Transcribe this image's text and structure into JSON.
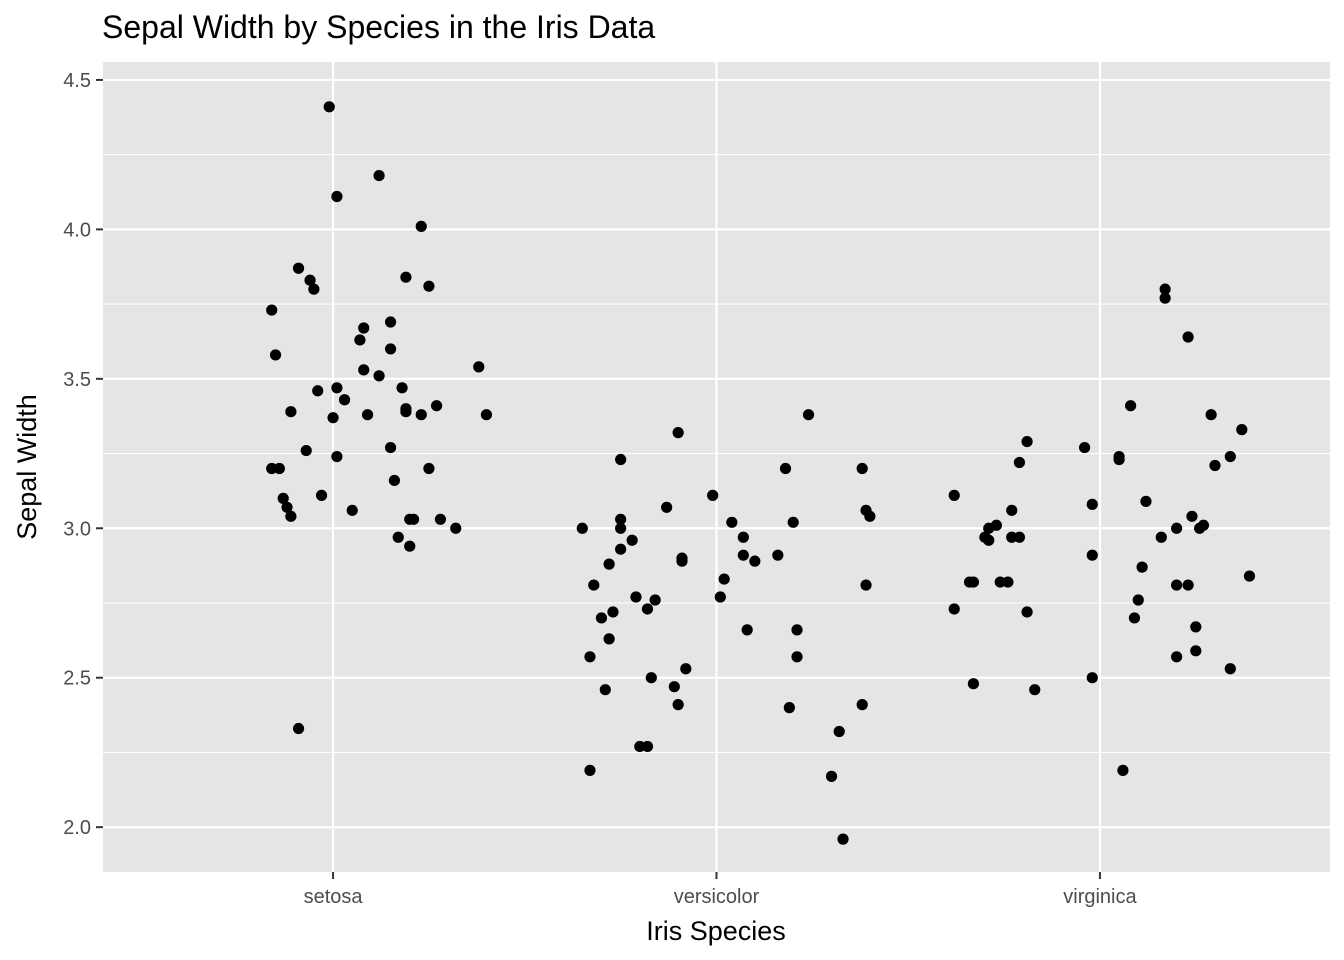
{
  "chart_data": {
    "type": "scatter",
    "title": "Sepal Width by Species in the Iris Data",
    "xlabel": "Iris Species",
    "ylabel": "Sepal Width",
    "categories": [
      "setosa",
      "versicolor",
      "virginica"
    ],
    "y_ticks": [
      2.0,
      2.5,
      3.0,
      3.5,
      4.0,
      4.5
    ],
    "y_tick_labels": [
      "2.0",
      "2.5",
      "3.0",
      "3.5",
      "4.0",
      "4.5"
    ],
    "ylim": [
      1.85,
      4.56
    ],
    "xlim": [
      0.4,
      3.6
    ],
    "grid": true,
    "jitter": true,
    "colors": {
      "panel": "#e5e5e5",
      "grid": "#ffffff",
      "point": "#000000",
      "tick": "#333333"
    },
    "points": [
      {
        "x": 0.99,
        "y": 4.41
      },
      {
        "x": 1.01,
        "y": 4.11
      },
      {
        "x": 1.12,
        "y": 4.18
      },
      {
        "x": 1.23,
        "y": 4.01
      },
      {
        "x": 0.84,
        "y": 3.73
      },
      {
        "x": 0.91,
        "y": 3.87
      },
      {
        "x": 0.94,
        "y": 3.83
      },
      {
        "x": 0.95,
        "y": 3.8
      },
      {
        "x": 1.19,
        "y": 3.84
      },
      {
        "x": 1.25,
        "y": 3.81
      },
      {
        "x": 0.85,
        "y": 3.58
      },
      {
        "x": 1.07,
        "y": 3.63
      },
      {
        "x": 1.08,
        "y": 3.67
      },
      {
        "x": 1.15,
        "y": 3.69
      },
      {
        "x": 1.15,
        "y": 3.6
      },
      {
        "x": 1.08,
        "y": 3.53
      },
      {
        "x": 1.12,
        "y": 3.51
      },
      {
        "x": 1.38,
        "y": 3.54
      },
      {
        "x": 0.96,
        "y": 3.46
      },
      {
        "x": 1.01,
        "y": 3.47
      },
      {
        "x": 1.03,
        "y": 3.43
      },
      {
        "x": 1.18,
        "y": 3.47
      },
      {
        "x": 0.89,
        "y": 3.39
      },
      {
        "x": 1.09,
        "y": 3.38
      },
      {
        "x": 1.19,
        "y": 3.4
      },
      {
        "x": 1.19,
        "y": 3.39
      },
      {
        "x": 1.23,
        "y": 3.38
      },
      {
        "x": 1.27,
        "y": 3.41
      },
      {
        "x": 1.4,
        "y": 3.38
      },
      {
        "x": 1.0,
        "y": 3.37
      },
      {
        "x": 0.93,
        "y": 3.26
      },
      {
        "x": 1.01,
        "y": 3.24
      },
      {
        "x": 1.15,
        "y": 3.27
      },
      {
        "x": 0.84,
        "y": 3.2
      },
      {
        "x": 0.86,
        "y": 3.2
      },
      {
        "x": 1.25,
        "y": 3.2
      },
      {
        "x": 1.16,
        "y": 3.16
      },
      {
        "x": 0.97,
        "y": 3.11
      },
      {
        "x": 0.87,
        "y": 3.1
      },
      {
        "x": 0.88,
        "y": 3.07
      },
      {
        "x": 0.89,
        "y": 3.04
      },
      {
        "x": 1.05,
        "y": 3.06
      },
      {
        "x": 1.2,
        "y": 3.03
      },
      {
        "x": 1.21,
        "y": 3.03
      },
      {
        "x": 1.28,
        "y": 3.03
      },
      {
        "x": 1.32,
        "y": 3.0
      },
      {
        "x": 1.17,
        "y": 2.97
      },
      {
        "x": 1.2,
        "y": 2.94
      },
      {
        "x": 0.91,
        "y": 2.33
      },
      {
        "x": 2.24,
        "y": 3.38
      },
      {
        "x": 1.9,
        "y": 3.32
      },
      {
        "x": 1.75,
        "y": 3.23
      },
      {
        "x": 2.18,
        "y": 3.2
      },
      {
        "x": 2.38,
        "y": 3.2
      },
      {
        "x": 1.99,
        "y": 3.11
      },
      {
        "x": 1.87,
        "y": 3.07
      },
      {
        "x": 2.39,
        "y": 3.06
      },
      {
        "x": 2.4,
        "y": 3.04
      },
      {
        "x": 1.75,
        "y": 3.03
      },
      {
        "x": 2.04,
        "y": 3.02
      },
      {
        "x": 2.2,
        "y": 3.02
      },
      {
        "x": 1.65,
        "y": 3.0
      },
      {
        "x": 1.75,
        "y": 3.0
      },
      {
        "x": 2.07,
        "y": 2.97
      },
      {
        "x": 1.78,
        "y": 2.96
      },
      {
        "x": 1.75,
        "y": 2.93
      },
      {
        "x": 2.07,
        "y": 2.91
      },
      {
        "x": 2.16,
        "y": 2.91
      },
      {
        "x": 1.91,
        "y": 2.9
      },
      {
        "x": 1.91,
        "y": 2.89
      },
      {
        "x": 2.1,
        "y": 2.89
      },
      {
        "x": 1.72,
        "y": 2.88
      },
      {
        "x": 2.02,
        "y": 2.83
      },
      {
        "x": 1.68,
        "y": 2.81
      },
      {
        "x": 2.39,
        "y": 2.81
      },
      {
        "x": 1.79,
        "y": 2.77
      },
      {
        "x": 2.01,
        "y": 2.77
      },
      {
        "x": 1.84,
        "y": 2.76
      },
      {
        "x": 1.82,
        "y": 2.73
      },
      {
        "x": 1.73,
        "y": 2.72
      },
      {
        "x": 1.7,
        "y": 2.7
      },
      {
        "x": 2.08,
        "y": 2.66
      },
      {
        "x": 2.21,
        "y": 2.66
      },
      {
        "x": 1.72,
        "y": 2.63
      },
      {
        "x": 1.67,
        "y": 2.57
      },
      {
        "x": 2.21,
        "y": 2.57
      },
      {
        "x": 1.92,
        "y": 2.53
      },
      {
        "x": 1.83,
        "y": 2.5
      },
      {
        "x": 1.89,
        "y": 2.47
      },
      {
        "x": 1.71,
        "y": 2.46
      },
      {
        "x": 1.9,
        "y": 2.41
      },
      {
        "x": 2.38,
        "y": 2.41
      },
      {
        "x": 2.19,
        "y": 2.4
      },
      {
        "x": 2.32,
        "y": 2.32
      },
      {
        "x": 1.8,
        "y": 2.27
      },
      {
        "x": 1.82,
        "y": 2.27
      },
      {
        "x": 1.67,
        "y": 2.19
      },
      {
        "x": 2.3,
        "y": 2.17
      },
      {
        "x": 2.33,
        "y": 1.96
      },
      {
        "x": 3.17,
        "y": 3.8
      },
      {
        "x": 3.17,
        "y": 3.77
      },
      {
        "x": 3.23,
        "y": 3.64
      },
      {
        "x": 3.08,
        "y": 3.41
      },
      {
        "x": 3.29,
        "y": 3.38
      },
      {
        "x": 3.37,
        "y": 3.33
      },
      {
        "x": 2.81,
        "y": 3.29
      },
      {
        "x": 2.96,
        "y": 3.27
      },
      {
        "x": 3.05,
        "y": 3.24
      },
      {
        "x": 3.05,
        "y": 3.23
      },
      {
        "x": 3.34,
        "y": 3.24
      },
      {
        "x": 2.79,
        "y": 3.22
      },
      {
        "x": 3.3,
        "y": 3.21
      },
      {
        "x": 2.62,
        "y": 3.11
      },
      {
        "x": 2.77,
        "y": 3.06
      },
      {
        "x": 2.98,
        "y": 3.08
      },
      {
        "x": 3.12,
        "y": 3.09
      },
      {
        "x": 3.24,
        "y": 3.04
      },
      {
        "x": 3.27,
        "y": 3.01
      },
      {
        "x": 2.73,
        "y": 3.01
      },
      {
        "x": 2.71,
        "y": 3.0
      },
      {
        "x": 3.2,
        "y": 3.0
      },
      {
        "x": 3.26,
        "y": 3.0
      },
      {
        "x": 2.7,
        "y": 2.97
      },
      {
        "x": 2.71,
        "y": 2.96
      },
      {
        "x": 2.77,
        "y": 2.97
      },
      {
        "x": 2.79,
        "y": 2.97
      },
      {
        "x": 3.16,
        "y": 2.97
      },
      {
        "x": 2.98,
        "y": 2.91
      },
      {
        "x": 3.11,
        "y": 2.87
      },
      {
        "x": 3.39,
        "y": 2.84
      },
      {
        "x": 2.66,
        "y": 2.82
      },
      {
        "x": 2.67,
        "y": 2.82
      },
      {
        "x": 2.74,
        "y": 2.82
      },
      {
        "x": 2.76,
        "y": 2.82
      },
      {
        "x": 3.2,
        "y": 2.81
      },
      {
        "x": 3.23,
        "y": 2.81
      },
      {
        "x": 3.1,
        "y": 2.76
      },
      {
        "x": 2.62,
        "y": 2.73
      },
      {
        "x": 2.81,
        "y": 2.72
      },
      {
        "x": 3.09,
        "y": 2.7
      },
      {
        "x": 3.25,
        "y": 2.67
      },
      {
        "x": 3.25,
        "y": 2.59
      },
      {
        "x": 3.2,
        "y": 2.57
      },
      {
        "x": 3.34,
        "y": 2.53
      },
      {
        "x": 2.98,
        "y": 2.5
      },
      {
        "x": 2.67,
        "y": 2.48
      },
      {
        "x": 2.83,
        "y": 2.46
      },
      {
        "x": 3.06,
        "y": 2.19
      }
    ]
  }
}
